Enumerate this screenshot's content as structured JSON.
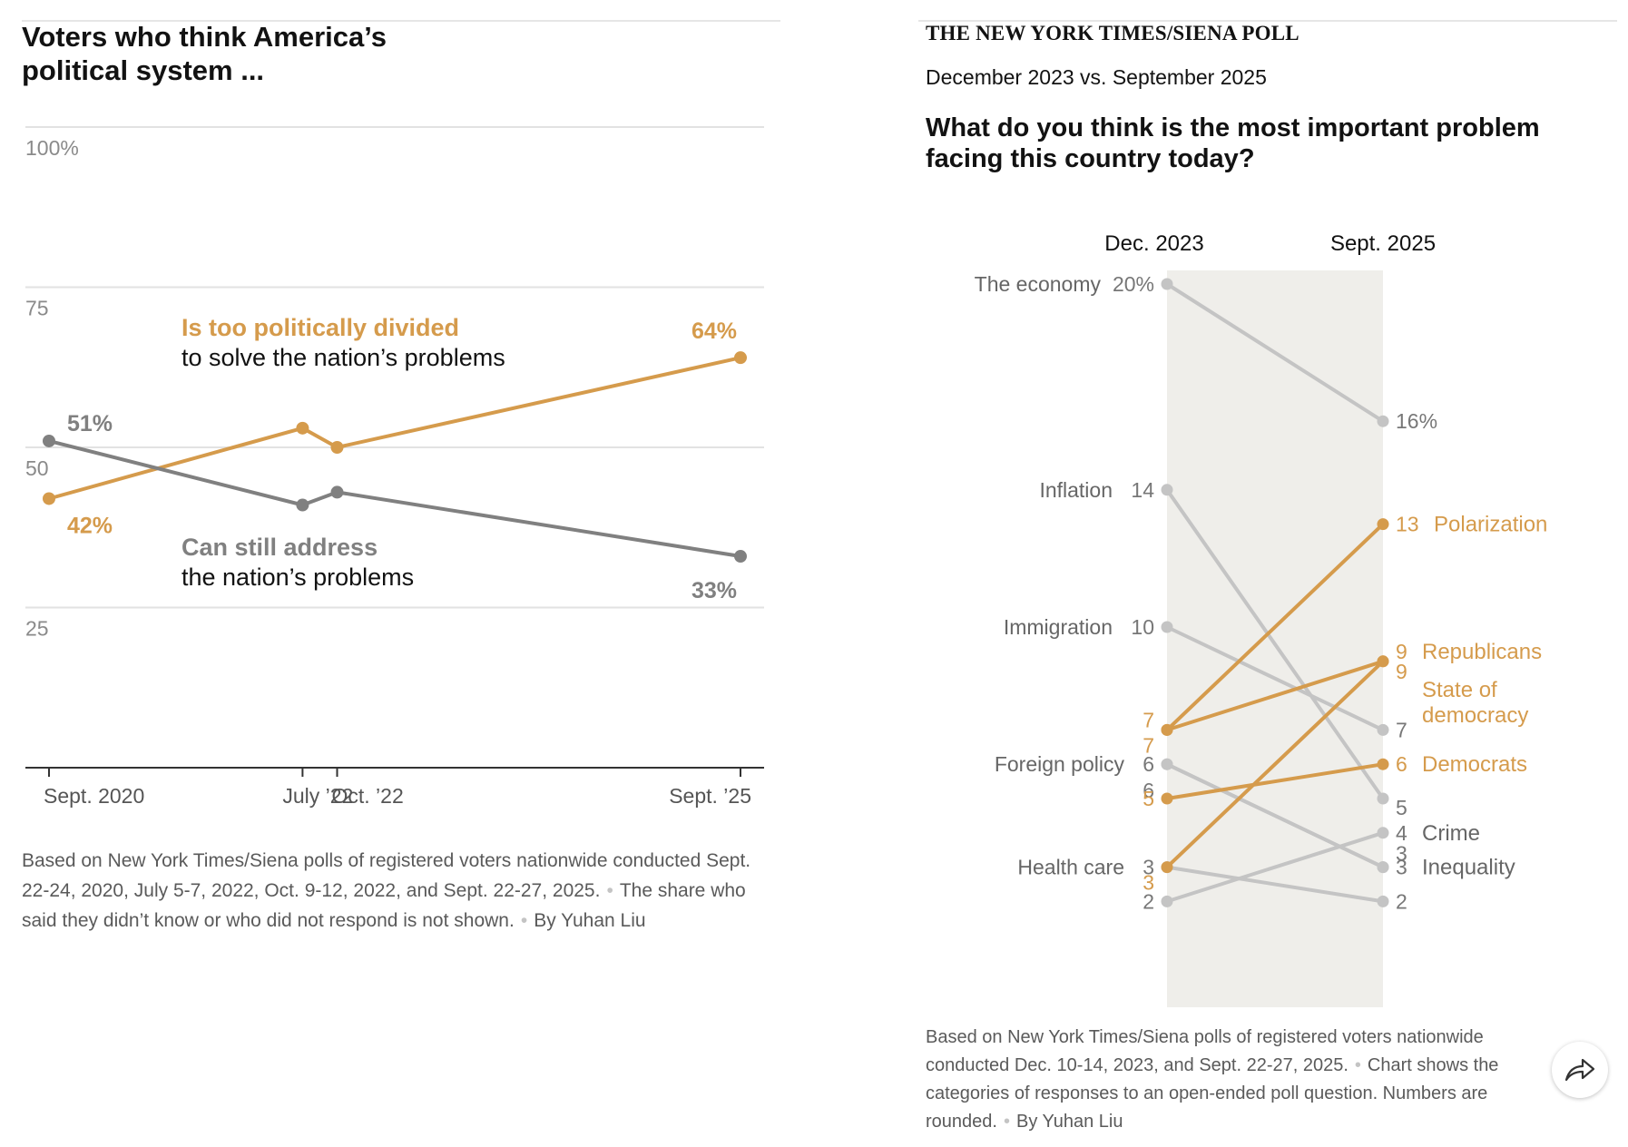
{
  "left_chart": {
    "title_line1": "Voters who think America’s",
    "title_line2": "political system ...",
    "notes": {
      "part1": "Based on New York Times/Siena polls of registered voters nationwide conducted Sept. 22-24, 2020, July 5-7, 2022, Oct. 9-12, 2022, and Sept. 22-27, 2025.",
      "part2": "The share who said they didn’t know or who did not respond is not shown.",
      "byline": "By Yuhan Liu"
    }
  },
  "right_chart": {
    "kicker": "THE NEW YORK TIMES/SIENA POLL",
    "subkicker": "December 2023 vs. September 2025",
    "question": "What do you think is the most important problem facing this country today?",
    "notes": {
      "part1": "Based on New York Times/Siena polls of registered voters nationwide conducted Dec. 10-14, 2023, and Sept. 22-27, 2025.",
      "part2": "Chart shows the categories of responses to an open-ended poll question. Numbers are rounded.",
      "byline": "By Yuhan Liu"
    }
  },
  "share": {
    "icon": "share-arrow-icon"
  },
  "colors": {
    "orange": "#D59B4C",
    "dark_gray": "#808080",
    "light_gray": "#C4C4C4",
    "band": "#EFEEEA",
    "grid": "#E2E2E2",
    "axis": "#333333"
  },
  "chart_data": [
    {
      "type": "line",
      "title": "Voters who think America’s political system ...",
      "x": [
        "2020-09",
        "2022-07",
        "2022-10",
        "2025-09"
      ],
      "x_tick_labels": [
        "Sept. 2020",
        "July ’22",
        "Oct. ’22",
        "Sept. ’25"
      ],
      "y_ticks": [
        25,
        50,
        75,
        100
      ],
      "y_tick_labels": [
        "25",
        "50",
        "75",
        "100%"
      ],
      "ylim": [
        0,
        100
      ],
      "grid": true,
      "series": [
        {
          "name": "Is too politically divided",
          "name_line2": "to solve the nation’s problems",
          "values": [
            42,
            53,
            50,
            64
          ],
          "color": "orange",
          "start_label": "42%",
          "end_label": "64%"
        },
        {
          "name": "Can still address",
          "name_line2": "the nation’s problems",
          "values": [
            51,
            41,
            43,
            33
          ],
          "color": "dark_gray",
          "start_label": "51%",
          "end_label": "33%"
        }
      ]
    },
    {
      "type": "slope",
      "columns": [
        "Dec. 2023",
        "Sept. 2025"
      ],
      "ylim": [
        1,
        20
      ],
      "items": [
        {
          "name": "The economy",
          "start": 20,
          "end": 16,
          "start_label": "20%",
          "end_label": "16%",
          "color": "light_gray",
          "label_side": "left"
        },
        {
          "name": "Inflation",
          "start": 14,
          "end": 5,
          "start_label": "14",
          "end_label": "5",
          "color": "light_gray",
          "label_side": "left"
        },
        {
          "name": "Immigration",
          "start": 10,
          "end": 7,
          "start_label": "10",
          "end_label": "7",
          "color": "light_gray",
          "label_side": "left"
        },
        {
          "name": "Foreign policy",
          "start": 6,
          "end": 3,
          "start_label": "6",
          "end_label": "3",
          "color": "light_gray",
          "label_side": "left"
        },
        {
          "name": "Inequality",
          "start": 6,
          "end": 3,
          "start_label": "6",
          "end_label": "3",
          "color": "light_gray",
          "label_side": "right"
        },
        {
          "name": "Health care",
          "start": 3,
          "end": 2,
          "start_label": "3",
          "end_label": "2",
          "color": "light_gray",
          "label_side": "left"
        },
        {
          "name": "Crime",
          "start": 2,
          "end": 4,
          "start_label": "2",
          "end_label": "4",
          "color": "light_gray",
          "label_side": "right"
        },
        {
          "name": "Polarization",
          "start": 7,
          "end": 13,
          "start_label": "7",
          "end_label": "13",
          "color": "orange",
          "label_side": "right"
        },
        {
          "name": "Republicans",
          "start": 7,
          "end": 9,
          "start_label": "7",
          "end_label": "9",
          "color": "orange",
          "label_side": "right"
        },
        {
          "name": "State of democracy",
          "name_line1": "State of",
          "name_line2": "democracy",
          "start": 3,
          "end": 9,
          "start_label": "3",
          "end_label": "9",
          "color": "orange",
          "label_side": "right"
        },
        {
          "name": "Democrats",
          "start": 5,
          "end": 6,
          "start_label": "5",
          "end_label": "6",
          "color": "orange",
          "label_side": "right"
        }
      ]
    }
  ]
}
